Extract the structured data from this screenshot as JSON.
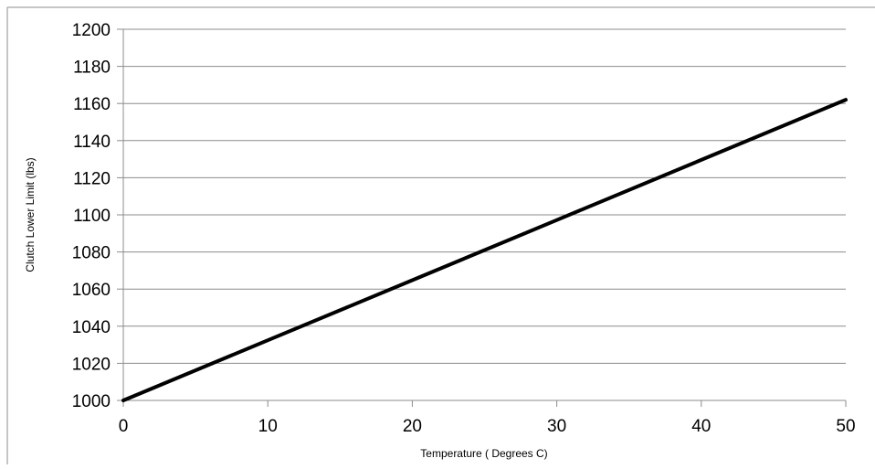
{
  "chart_data": {
    "type": "line",
    "title": "",
    "xlabel": "Temperature ( Degrees C)",
    "ylabel": "Clutch Lower Limit (lbs)",
    "xlim": [
      0,
      50
    ],
    "ylim": [
      1000,
      1200
    ],
    "x_ticks": [
      "0",
      "10",
      "20",
      "30",
      "40",
      "50"
    ],
    "y_ticks": [
      "1000",
      "1020",
      "1040",
      "1060",
      "1080",
      "1100",
      "1120",
      "1140",
      "1160",
      "1180",
      "1200"
    ],
    "grid": "horizontal",
    "legend": "none",
    "series": [
      {
        "x": [
          0,
          10,
          20,
          30,
          40,
          50
        ],
        "y": [
          1000,
          1032.4,
          1064.8,
          1097.2,
          1129.6,
          1162
        ],
        "color": "#000000"
      }
    ]
  }
}
